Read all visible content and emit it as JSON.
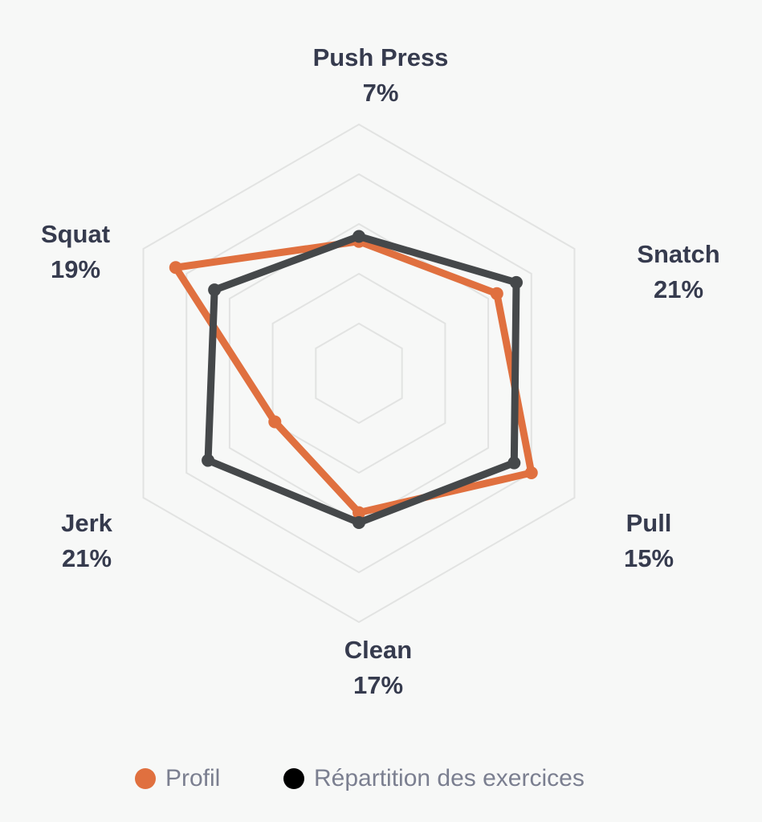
{
  "chart_data": {
    "type": "radar",
    "axes": [
      {
        "name": "Push Press",
        "pct": "7%"
      },
      {
        "name": "Snatch",
        "pct": "21%"
      },
      {
        "name": "Pull",
        "pct": "15%"
      },
      {
        "name": "Clean",
        "pct": "17%"
      },
      {
        "name": "Jerk",
        "pct": "21%"
      },
      {
        "name": "Squat",
        "pct": "19%"
      }
    ],
    "grid_levels": 5,
    "max_value": 1,
    "series": [
      {
        "name": "Profil",
        "color": "#e0703f",
        "values": [
          0.53,
          0.64,
          0.8,
          0.56,
          0.39,
          0.85
        ]
      },
      {
        "name": "Répartition des exercices",
        "color": "#45484a",
        "values": [
          0.55,
          0.73,
          0.72,
          0.6,
          0.7,
          0.67
        ]
      }
    ]
  },
  "legend": {
    "items": [
      {
        "label": "Profil",
        "color": "#e0703f"
      },
      {
        "label": "Répartition des exercices",
        "color": "#000000"
      }
    ]
  }
}
